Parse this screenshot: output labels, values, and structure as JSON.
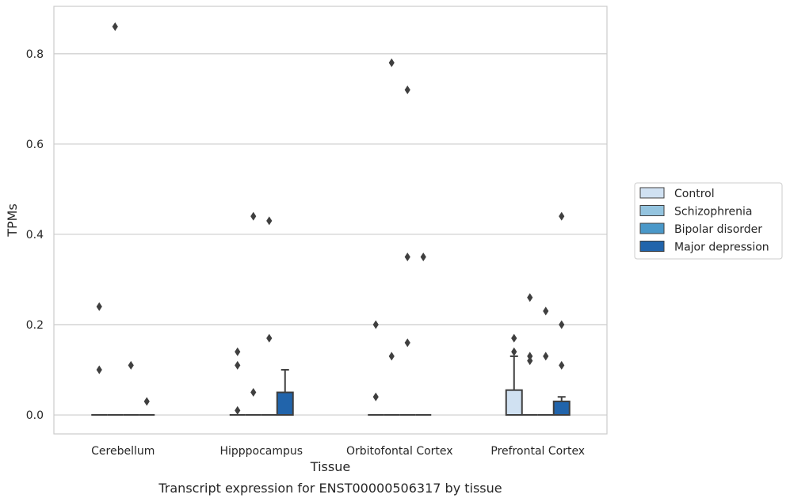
{
  "chart_data": {
    "type": "box",
    "title": "Transcript expression for ENST00000506317 by tissue",
    "xlabel": "Tissue",
    "ylabel": "TPMs",
    "ylim": [
      -0.042,
      0.905
    ],
    "yticks": [
      "0.0",
      "0.2",
      "0.4",
      "0.6",
      "0.8"
    ],
    "ytick_values": [
      0.0,
      0.2,
      0.4,
      0.6,
      0.8
    ],
    "grid": "horizontal",
    "legend_position": "right",
    "categories": [
      "Cerebellum",
      "Hipppocampus",
      "Orbitofontal Cortex",
      "Prefrontal Cortex"
    ],
    "series": [
      {
        "name": "Control",
        "color": "#d0e1f2",
        "boxes": [
          {
            "q1": 0,
            "median": 0,
            "q3": 0,
            "whisker_low": 0,
            "whisker_high": 0,
            "outliers": [
              0.24,
              0.1
            ]
          },
          {
            "q1": 0,
            "median": 0,
            "q3": 0,
            "whisker_low": 0,
            "whisker_high": 0,
            "outliers": [
              0.14,
              0.11,
              0.01
            ]
          },
          {
            "q1": 0,
            "median": 0,
            "q3": 0,
            "whisker_low": 0,
            "whisker_high": 0,
            "outliers": [
              0.2,
              0.04
            ]
          },
          {
            "q1": 0,
            "median": 0,
            "q3": 0.055,
            "whisker_low": 0,
            "whisker_high": 0.13,
            "outliers": [
              0.17,
              0.14
            ]
          }
        ]
      },
      {
        "name": "Schizophrenia",
        "color": "#94c4df",
        "boxes": [
          {
            "q1": 0,
            "median": 0,
            "q3": 0,
            "whisker_low": 0,
            "whisker_high": 0,
            "outliers": [
              0.86
            ]
          },
          {
            "q1": 0,
            "median": 0,
            "q3": 0,
            "whisker_low": 0,
            "whisker_high": 0,
            "outliers": [
              0.44,
              0.05
            ]
          },
          {
            "q1": 0,
            "median": 0,
            "q3": 0,
            "whisker_low": 0,
            "whisker_high": 0,
            "outliers": [
              0.78,
              0.13
            ]
          },
          {
            "q1": 0,
            "median": 0,
            "q3": 0,
            "whisker_low": 0,
            "whisker_high": 0,
            "outliers": [
              0.26,
              0.13,
              0.12
            ]
          }
        ]
      },
      {
        "name": "Bipolar disorder",
        "color": "#4a98c9",
        "boxes": [
          {
            "q1": 0,
            "median": 0,
            "q3": 0,
            "whisker_low": 0,
            "whisker_high": 0,
            "outliers": [
              0.11
            ]
          },
          {
            "q1": 0,
            "median": 0,
            "q3": 0,
            "whisker_low": 0,
            "whisker_high": 0,
            "outliers": [
              0.43,
              0.17
            ]
          },
          {
            "q1": 0,
            "median": 0,
            "q3": 0,
            "whisker_low": 0,
            "whisker_high": 0,
            "outliers": [
              0.72,
              0.35,
              0.16
            ]
          },
          {
            "q1": 0,
            "median": 0,
            "q3": 0,
            "whisker_low": 0,
            "whisker_high": 0,
            "outliers": [
              0.23,
              0.13
            ]
          }
        ]
      },
      {
        "name": "Major depression",
        "color": "#2164ab",
        "boxes": [
          {
            "q1": 0,
            "median": 0,
            "q3": 0,
            "whisker_low": 0,
            "whisker_high": 0,
            "outliers": [
              0.03
            ]
          },
          {
            "q1": 0,
            "median": 0,
            "q3": 0.05,
            "whisker_low": 0,
            "whisker_high": 0.1,
            "outliers": []
          },
          {
            "q1": 0,
            "median": 0,
            "q3": 0,
            "whisker_low": 0,
            "whisker_high": 0,
            "outliers": [
              0.35
            ]
          },
          {
            "q1": 0,
            "median": 0,
            "q3": 0.03,
            "whisker_low": 0,
            "whisker_high": 0.04,
            "outliers": [
              0.44,
              0.2,
              0.11
            ]
          }
        ]
      }
    ],
    "colors": {
      "grid": "#cccccc",
      "frame": "#cccccc",
      "box_edge": "#3f3f3f",
      "outlier": "#3f3f3f"
    }
  }
}
